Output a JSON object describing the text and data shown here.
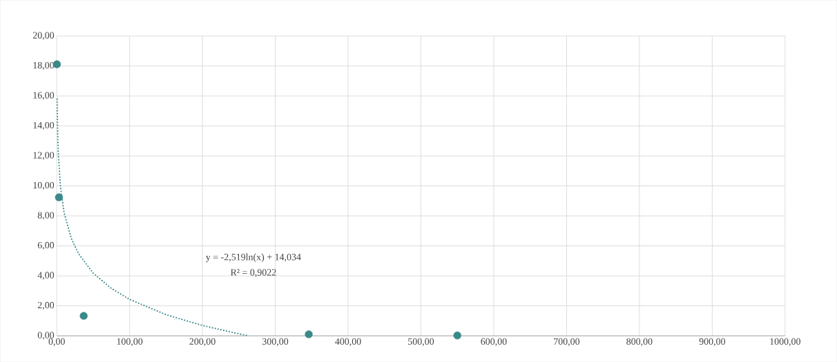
{
  "chart_data": {
    "type": "scatter",
    "series": [
      {
        "color": "#3a8a8a",
        "marker": "circle",
        "x": [
          0.2,
          3,
          37,
          346,
          550
        ],
        "values": [
          18.11,
          9.24,
          1.33,
          0.1,
          0.02
        ]
      },
      {
        "type": "line",
        "color": "#3a8a8a",
        "marker": "none",
        "line_style": "dotted",
        "x": [
          0.5,
          1,
          2,
          5,
          10,
          20,
          30,
          50,
          75,
          100,
          150,
          200,
          250,
          264
        ],
        "values": [
          15.78,
          14.03,
          12.29,
          9.98,
          8.23,
          6.49,
          5.47,
          4.18,
          3.16,
          2.43,
          1.41,
          0.69,
          0.13,
          0.0
        ]
      }
    ],
    "annotations": [
      "y = -2,519ln(x) + 14,034",
      "R² = 0,9022"
    ],
    "xlim": [
      0,
      1000
    ],
    "ylim": [
      0,
      20
    ],
    "xticks": [
      {
        "value": 0,
        "label": "0,00"
      },
      {
        "value": 100,
        "label": "100,00"
      },
      {
        "value": 200,
        "label": "200,00"
      },
      {
        "value": 300,
        "label": "300,00"
      },
      {
        "value": 400,
        "label": "400,00"
      },
      {
        "value": 500,
        "label": "500,00"
      },
      {
        "value": 600,
        "label": "600,00"
      },
      {
        "value": 700,
        "label": "700,00"
      },
      {
        "value": 800,
        "label": "800,00"
      },
      {
        "value": 900,
        "label": "900,00"
      },
      {
        "value": 1000,
        "label": "1000,00"
      }
    ],
    "yticks": [
      {
        "value": 0,
        "label": "0,00"
      },
      {
        "value": 2,
        "label": "2,00"
      },
      {
        "value": 4,
        "label": "4,00"
      },
      {
        "value": 6,
        "label": "6,00"
      },
      {
        "value": 8,
        "label": "8,00"
      },
      {
        "value": 10,
        "label": "10,00"
      },
      {
        "value": 12,
        "label": "12,00"
      },
      {
        "value": 14,
        "label": "14,00"
      },
      {
        "value": 16,
        "label": "16,00"
      },
      {
        "value": 18,
        "label": "18,00"
      },
      {
        "value": 20,
        "label": "20,00"
      }
    ],
    "grid": true
  }
}
